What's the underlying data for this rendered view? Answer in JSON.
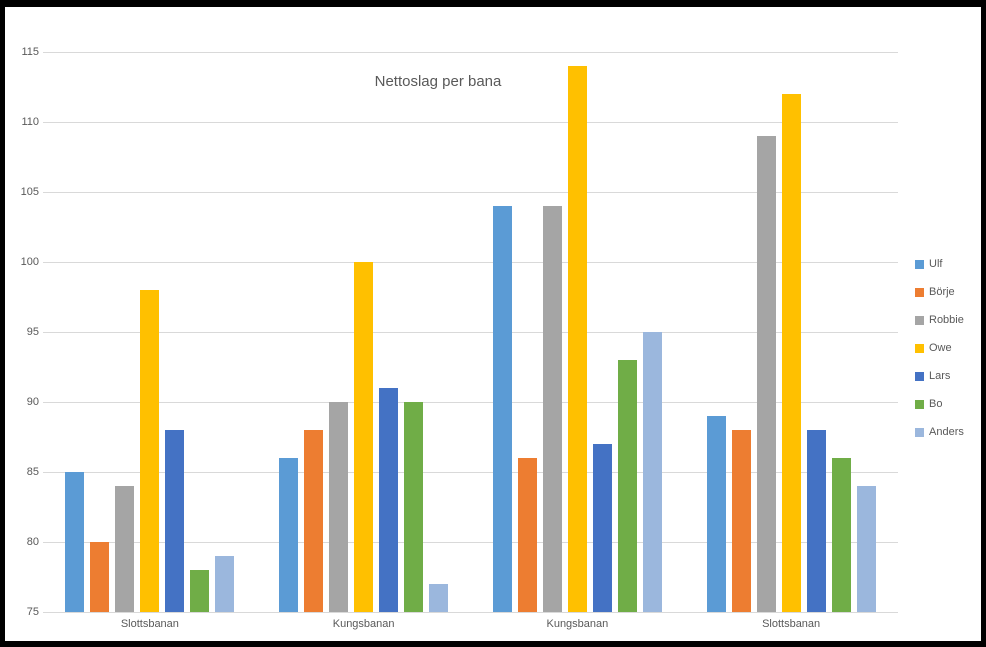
{
  "chart_data": {
    "type": "bar",
    "title": "Nettoslag per bana",
    "categories": [
      "Slottsbanan",
      "Kungsbanan",
      "Kungsbanan",
      "Slottsbanan"
    ],
    "series": [
      {
        "name": "Ulf",
        "color": "#5B9BD5",
        "values": [
          85,
          86,
          104,
          89
        ]
      },
      {
        "name": "Börje",
        "color": "#ED7D31",
        "values": [
          80,
          88,
          86,
          88
        ]
      },
      {
        "name": "Robbie",
        "color": "#A5A5A5",
        "values": [
          84,
          90,
          104,
          109
        ]
      },
      {
        "name": "Owe",
        "color": "#FFC000",
        "values": [
          98,
          100,
          114,
          112
        ]
      },
      {
        "name": "Lars",
        "color": "#4472C4",
        "values": [
          88,
          91,
          87,
          88
        ]
      },
      {
        "name": "Bo",
        "color": "#70AD47",
        "values": [
          78,
          90,
          93,
          86
        ]
      },
      {
        "name": "Anders",
        "color": "#9BB7DD",
        "values": [
          79,
          77,
          95,
          84
        ]
      }
    ],
    "yticks": [
      115,
      110,
      105,
      100,
      95,
      90,
      85,
      80,
      75
    ],
    "ylim": [
      75,
      115
    ],
    "grid": true,
    "legend_position": "right",
    "colors": {
      "background": "#FFFFFF",
      "frame": "#000000",
      "gridline": "#D9D9D9",
      "text": "#595959"
    }
  }
}
